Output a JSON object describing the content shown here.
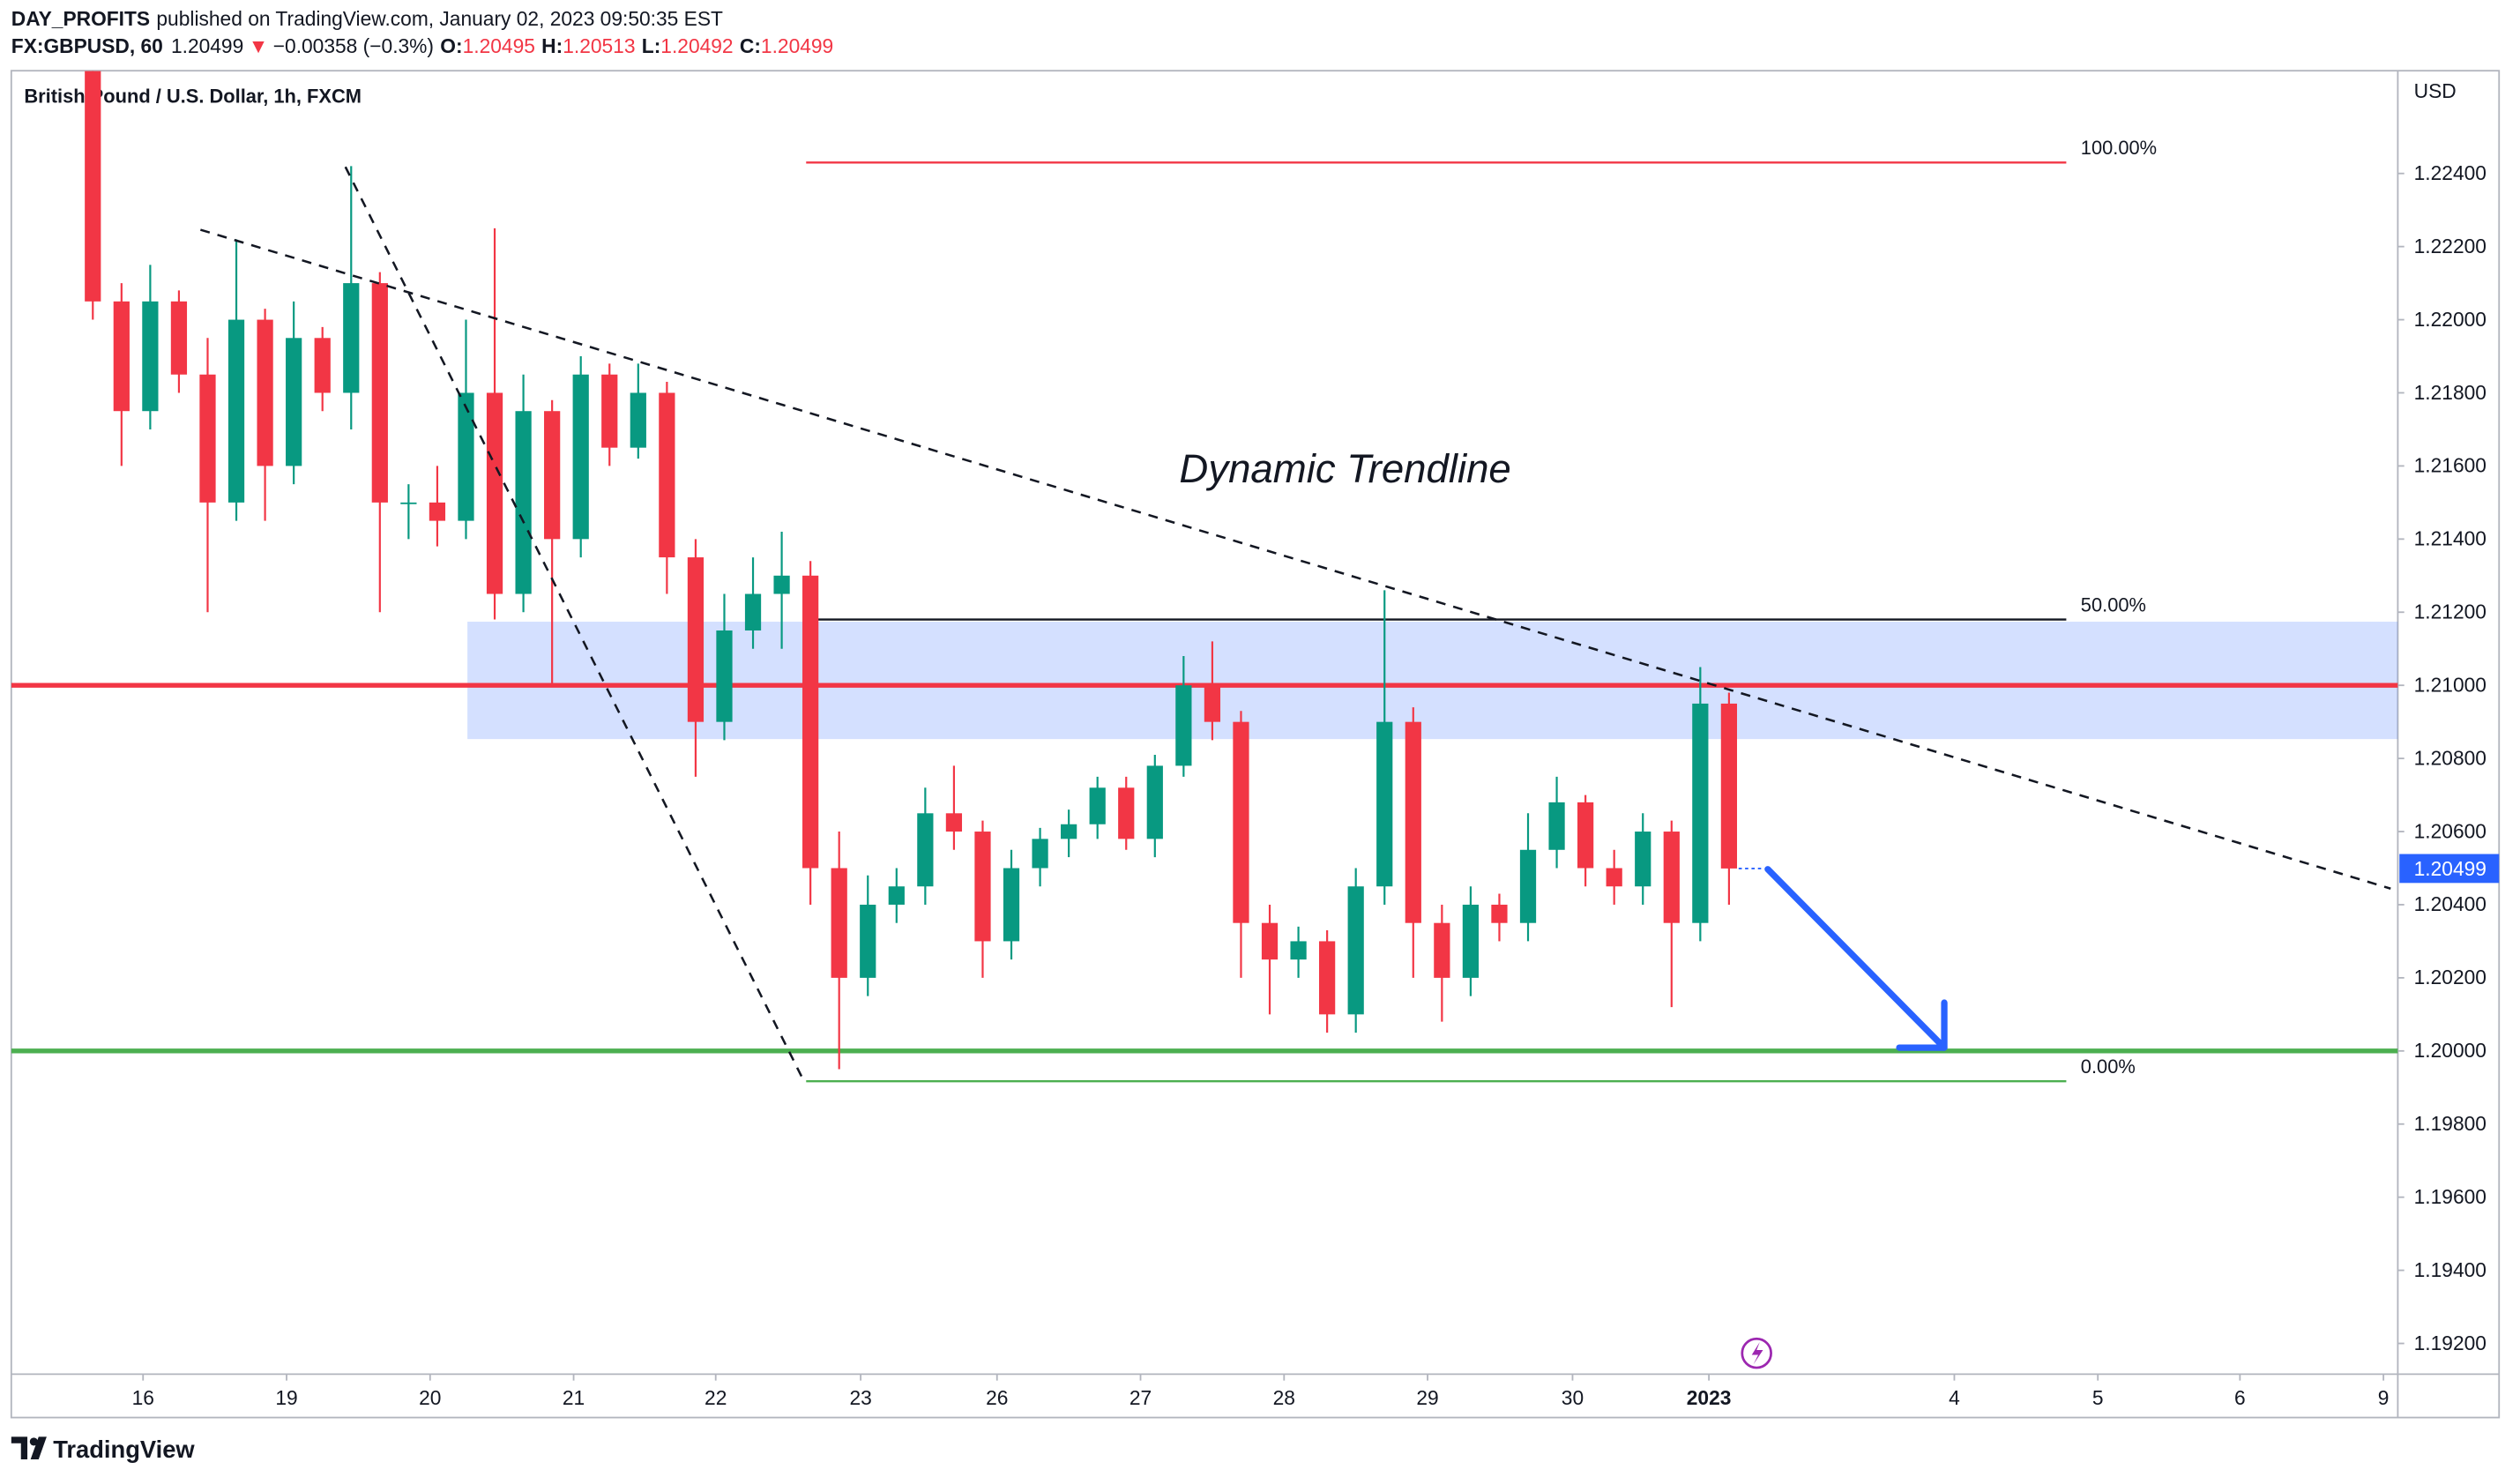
{
  "header": {
    "publisher": "DAY_PROFITS",
    "published_text": "published on TradingView.com, January 02, 2023 09:50:35 EST",
    "symbol": "FX:GBPUSD, 60",
    "price": 1.20499,
    "arrow": "▼",
    "change": "−0.00358 (−0.3%)",
    "ohlc": [
      {
        "label": "O:",
        "value": 1.20495
      },
      {
        "label": "H:",
        "value": 1.20513
      },
      {
        "label": "L:",
        "value": 1.20492
      },
      {
        "label": "C:",
        "value": 1.20499
      }
    ]
  },
  "chart_data": {
    "type": "candlestick",
    "title": "British Pound / U.S. Dollar, 1h, FXCM",
    "y_unit": "USD",
    "annotation": "Dynamic Trendline",
    "up_color": "#089981",
    "down_color": "#f23645",
    "xlim": [
      -0.918,
      15.71
    ],
    "xticks": [
      {
        "value": 0,
        "label": "16"
      },
      {
        "value": 1,
        "label": "19"
      },
      {
        "value": 2,
        "label": "20"
      },
      {
        "value": 3,
        "label": "21"
      },
      {
        "value": 3.99,
        "label": "22"
      },
      {
        "value": 5.0,
        "label": "23"
      },
      {
        "value": 5.95,
        "label": "26"
      },
      {
        "value": 6.95,
        "label": "27"
      },
      {
        "value": 7.95,
        "label": "28"
      },
      {
        "value": 8.95,
        "label": "29"
      },
      {
        "value": 9.96,
        "label": "30"
      },
      {
        "value": 10.91,
        "label": "2023"
      },
      {
        "value": 12.62,
        "label": "4"
      },
      {
        "value": 13.62,
        "label": "5"
      },
      {
        "value": 14.61,
        "label": "6"
      },
      {
        "value": 15.61,
        "label": "9"
      }
    ],
    "ylim": [
      1.19116,
      1.22681
    ],
    "yticks": [
      {
        "value": 1.224,
        "label": "1.22400"
      },
      {
        "value": 1.222,
        "label": "1.22200"
      },
      {
        "value": 1.22,
        "label": "1.22000"
      },
      {
        "value": 1.218,
        "label": "1.21800"
      },
      {
        "value": 1.216,
        "label": "1.21600"
      },
      {
        "value": 1.214,
        "label": "1.21400"
      },
      {
        "value": 1.212,
        "label": "1.21200"
      },
      {
        "value": 1.21,
        "label": "1.21000"
      },
      {
        "value": 1.208,
        "label": "1.20800"
      },
      {
        "value": 1.206,
        "label": "1.20600"
      },
      {
        "value": 1.204,
        "label": "1.20400"
      },
      {
        "value": 1.202,
        "label": "1.20200"
      },
      {
        "value": 1.2,
        "label": "1.20000"
      },
      {
        "value": 1.198,
        "label": "1.19800"
      },
      {
        "value": 1.196,
        "label": "1.19600"
      },
      {
        "value": 1.194,
        "label": "1.19400"
      },
      {
        "value": 1.192,
        "label": "1.19200"
      }
    ],
    "grid": false,
    "last_price": 1.20499,
    "candles": {
      "x": [
        -0.35,
        -0.15,
        0.05,
        0.25,
        0.45,
        0.65,
        0.85,
        1.05,
        1.25,
        1.45,
        1.65,
        1.85,
        2.05,
        2.25,
        2.45,
        2.65,
        2.85,
        3.05,
        3.25,
        3.45,
        3.65,
        3.85,
        4.05,
        4.25,
        4.45,
        4.65,
        4.85,
        5.05,
        5.25,
        5.45,
        5.65,
        5.85,
        6.05,
        6.25,
        6.45,
        6.65,
        6.85,
        7.05,
        7.25,
        7.45,
        7.65,
        7.85,
        8.05,
        8.25,
        8.45,
        8.65,
        8.85,
        9.05,
        9.25,
        9.45,
        9.65,
        9.85,
        10.05,
        10.25,
        10.45,
        10.65,
        10.85,
        11.05
      ],
      "open": [
        1.2268,
        1.2205,
        1.2175,
        1.2205,
        1.2185,
        1.215,
        1.22,
        1.216,
        1.2195,
        1.218,
        1.221,
        1.215,
        1.215,
        1.2145,
        1.218,
        1.2125,
        1.2175,
        1.214,
        1.2185,
        1.2165,
        1.218,
        1.2135,
        1.209,
        1.2115,
        1.2125,
        1.213,
        1.205,
        1.202,
        1.204,
        1.2045,
        1.2065,
        1.206,
        1.203,
        1.205,
        1.2058,
        1.2062,
        1.2072,
        1.2058,
        1.2078,
        1.21,
        1.209,
        1.2035,
        1.2025,
        1.203,
        1.201,
        1.2045,
        1.209,
        1.2035,
        1.202,
        1.204,
        1.2035,
        1.2055,
        1.2068,
        1.205,
        1.2045,
        1.206,
        1.2035,
        1.2095
      ],
      "high": [
        1.2268,
        1.221,
        1.2215,
        1.2208,
        1.2195,
        1.2222,
        1.2203,
        1.2205,
        1.2198,
        1.2242,
        1.2213,
        1.2155,
        1.216,
        1.22,
        1.2225,
        1.2185,
        1.2178,
        1.219,
        1.2188,
        1.2188,
        1.2183,
        1.214,
        1.2125,
        1.2135,
        1.2142,
        1.2134,
        1.206,
        1.2048,
        1.205,
        1.2072,
        1.2078,
        1.2063,
        1.2055,
        1.2061,
        1.2066,
        1.2075,
        1.2075,
        1.2081,
        1.2108,
        1.2112,
        1.2093,
        1.204,
        1.2034,
        1.2033,
        1.205,
        1.2126,
        1.2094,
        1.204,
        1.2045,
        1.2043,
        1.2065,
        1.2075,
        1.207,
        1.2055,
        1.2065,
        1.2063,
        1.2105,
        1.2098
      ],
      "low": [
        1.22,
        1.216,
        1.217,
        1.218,
        1.212,
        1.2145,
        1.2145,
        1.2155,
        1.2175,
        1.217,
        1.212,
        1.214,
        1.2138,
        1.214,
        1.2118,
        1.212,
        1.21,
        1.2135,
        1.216,
        1.2162,
        1.2125,
        1.2075,
        1.2085,
        1.211,
        1.211,
        1.204,
        1.1995,
        1.2015,
        1.2035,
        1.204,
        1.2055,
        1.202,
        1.2025,
        1.2045,
        1.2053,
        1.2058,
        1.2055,
        1.2053,
        1.2075,
        1.2085,
        1.202,
        1.201,
        1.202,
        1.2005,
        1.2005,
        1.204,
        1.202,
        1.2008,
        1.2015,
        1.203,
        1.203,
        1.205,
        1.2045,
        1.204,
        1.204,
        1.2012,
        1.203,
        1.204
      ],
      "close": [
        1.2205,
        1.2175,
        1.2205,
        1.2185,
        1.215,
        1.22,
        1.216,
        1.2195,
        1.218,
        1.221,
        1.215,
        1.215,
        1.2145,
        1.218,
        1.2125,
        1.2175,
        1.214,
        1.2185,
        1.2165,
        1.218,
        1.2135,
        1.209,
        1.2115,
        1.2125,
        1.213,
        1.205,
        1.202,
        1.204,
        1.2045,
        1.2065,
        1.206,
        1.203,
        1.205,
        1.2058,
        1.2062,
        1.2072,
        1.2058,
        1.2078,
        1.21,
        1.209,
        1.2035,
        1.2025,
        1.203,
        1.201,
        1.2045,
        1.209,
        1.2035,
        1.202,
        1.204,
        1.2035,
        1.2055,
        1.2068,
        1.205,
        1.2045,
        1.206,
        1.2035,
        1.2095,
        1.20499
      ]
    },
    "levels": [
      {
        "price": 1.21,
        "color": "#f23645"
      },
      {
        "price": 1.2,
        "color": "#4caf50"
      }
    ],
    "zone": {
      "x": [
        2.26,
        15.71
      ],
      "price": [
        1.20853,
        1.21174
      ],
      "color": "#2962ff"
    },
    "fib": {
      "x": [
        4.62,
        13.4
      ],
      "levels": [
        {
          "price": 1.2243,
          "label": "100.00%",
          "color": "#f23645"
        },
        {
          "price": 1.2118,
          "label": "50.00%",
          "color": "#131722"
        },
        {
          "price": 1.19917,
          "label": "0.00%",
          "color": "#4caf50"
        }
      ]
    },
    "trendlines": [
      {
        "x": [
          0.4,
          15.66
        ],
        "y": [
          1.22246,
          1.20444
        ]
      },
      {
        "x": [
          1.41,
          4.6
        ],
        "y": [
          1.22418,
          1.19921
        ]
      }
    ],
    "arrow": {
      "x": [
        11.32,
        12.55
      ],
      "y": [
        1.20497,
        1.20009
      ],
      "color": "#2962ff"
    }
  },
  "footer": {
    "brand": "TradingView"
  }
}
